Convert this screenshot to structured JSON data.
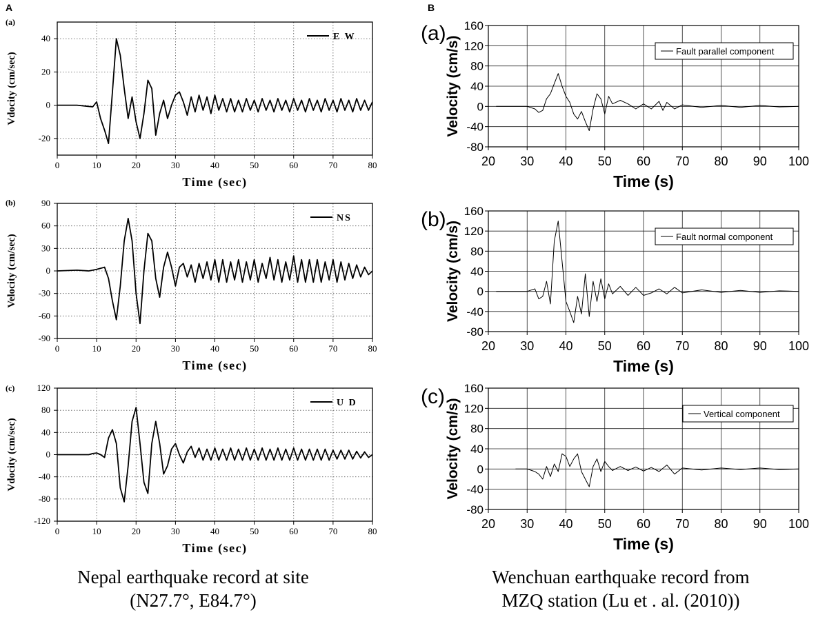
{
  "panel_labels": [
    "A",
    "B"
  ],
  "captions": {
    "left_line1": "Nepal earthquake record at site",
    "left_line2": "(N27.7°, E84.7°)",
    "right_line1": "Wenchuan earthquake record from",
    "right_line2": "MZQ station (Lu et . al. (2010))"
  },
  "chart_data": [
    {
      "id": "nepal-ew",
      "type": "line",
      "panel": "A",
      "sublabel": "(a)",
      "xlabel": "Time (sec)",
      "ylabel": "Vdocity (cm/sec)",
      "xlim": [
        0,
        80
      ],
      "ylim": [
        -30,
        50
      ],
      "xticks": [
        0,
        10,
        20,
        30,
        40,
        50,
        60,
        70,
        80
      ],
      "yticks": [
        -20,
        0,
        20,
        40
      ],
      "grid": "dotted",
      "legend_position": "top-right",
      "series": [
        {
          "name": "E W",
          "x": [
            0,
            5,
            9,
            10,
            11,
            12,
            13,
            14,
            15,
            16,
            17,
            18,
            19,
            20,
            21,
            22,
            23,
            24,
            25,
            26,
            27,
            28,
            29,
            30,
            31,
            32,
            33,
            34,
            35,
            36,
            37,
            38,
            39,
            40,
            41,
            42,
            43,
            44,
            45,
            46,
            47,
            48,
            49,
            50,
            51,
            52,
            53,
            54,
            55,
            56,
            57,
            58,
            59,
            60,
            61,
            62,
            63,
            64,
            65,
            66,
            67,
            68,
            69,
            70,
            71,
            72,
            73,
            74,
            75,
            76,
            77,
            78,
            79,
            80
          ],
          "y": [
            0,
            0,
            -1,
            2,
            -8,
            -15,
            -23,
            8,
            40,
            30,
            10,
            -8,
            5,
            -10,
            -20,
            -5,
            15,
            10,
            -18,
            -5,
            3,
            -8,
            0,
            6,
            8,
            2,
            -6,
            5,
            -4,
            6,
            -3,
            5,
            -5,
            6,
            -3,
            4,
            -4,
            4,
            -4,
            3,
            -4,
            4,
            -3,
            3,
            -4,
            4,
            -3,
            3,
            -4,
            4,
            -3,
            3,
            -4,
            4,
            -3,
            3,
            -4,
            4,
            -3,
            3,
            -4,
            4,
            -3,
            3,
            -4,
            4,
            -3,
            3,
            -4,
            4,
            -3,
            3,
            -3,
            2
          ]
        }
      ]
    },
    {
      "id": "nepal-ns",
      "type": "line",
      "panel": "A",
      "sublabel": "(b)",
      "xlabel": "Time (sec)",
      "ylabel": "Velocity (cm/sec)",
      "xlim": [
        0,
        80
      ],
      "ylim": [
        -90,
        90
      ],
      "xticks": [
        0,
        10,
        20,
        30,
        40,
        50,
        60,
        70,
        80
      ],
      "yticks": [
        -90,
        -60,
        -30,
        0,
        30,
        60,
        90
      ],
      "grid": "dotted",
      "legend_position": "top-right",
      "series": [
        {
          "name": "NS",
          "x": [
            0,
            5,
            8,
            10,
            12,
            13,
            14,
            15,
            16,
            17,
            18,
            19,
            20,
            21,
            22,
            23,
            24,
            25,
            26,
            27,
            28,
            29,
            30,
            31,
            32,
            33,
            34,
            35,
            36,
            37,
            38,
            39,
            40,
            41,
            42,
            43,
            44,
            45,
            46,
            47,
            48,
            49,
            50,
            51,
            52,
            53,
            54,
            55,
            56,
            57,
            58,
            59,
            60,
            61,
            62,
            63,
            64,
            65,
            66,
            67,
            68,
            69,
            70,
            71,
            72,
            73,
            74,
            75,
            76,
            77,
            78,
            79,
            80
          ],
          "y": [
            0,
            1,
            0,
            2,
            5,
            -10,
            -40,
            -65,
            -20,
            40,
            70,
            40,
            -30,
            -70,
            0,
            50,
            40,
            -10,
            -35,
            5,
            25,
            5,
            -20,
            5,
            10,
            -8,
            8,
            -15,
            10,
            -10,
            12,
            -12,
            15,
            -15,
            15,
            -15,
            12,
            -12,
            15,
            -15,
            12,
            -12,
            15,
            -15,
            10,
            -10,
            18,
            -12,
            15,
            -15,
            12,
            -12,
            20,
            -15,
            15,
            -15,
            15,
            -15,
            15,
            -15,
            12,
            -12,
            15,
            -15,
            12,
            -12,
            10,
            -10,
            8,
            -8,
            5,
            -5,
            0
          ]
        }
      ]
    },
    {
      "id": "nepal-ud",
      "type": "line",
      "panel": "A",
      "sublabel": "(c)",
      "xlabel": "Time (sec)",
      "ylabel": "Vdocity (cm/sec)",
      "xlim": [
        0,
        80
      ],
      "ylim": [
        -120,
        120
      ],
      "xticks": [
        0,
        10,
        20,
        30,
        40,
        50,
        60,
        70,
        80
      ],
      "yticks": [
        -120,
        -80,
        -40,
        0,
        40,
        80,
        120
      ],
      "grid": "dotted",
      "legend_position": "top-right",
      "series": [
        {
          "name": "U D",
          "x": [
            0,
            5,
            8,
            9,
            10,
            11,
            12,
            13,
            14,
            15,
            16,
            17,
            18,
            19,
            20,
            21,
            22,
            23,
            24,
            25,
            26,
            27,
            28,
            29,
            30,
            31,
            32,
            33,
            34,
            35,
            36,
            37,
            38,
            39,
            40,
            41,
            42,
            43,
            44,
            45,
            46,
            47,
            48,
            49,
            50,
            51,
            52,
            53,
            54,
            55,
            56,
            57,
            58,
            59,
            60,
            61,
            62,
            63,
            64,
            65,
            66,
            67,
            68,
            69,
            70,
            71,
            72,
            73,
            74,
            75,
            76,
            77,
            78,
            79,
            80
          ],
          "y": [
            0,
            0,
            0,
            2,
            3,
            0,
            -5,
            30,
            45,
            20,
            -60,
            -85,
            -20,
            60,
            85,
            20,
            -50,
            -70,
            20,
            60,
            20,
            -35,
            -20,
            10,
            20,
            0,
            -15,
            5,
            15,
            -5,
            12,
            -10,
            10,
            -10,
            12,
            -10,
            10,
            -10,
            12,
            -10,
            10,
            -10,
            12,
            -10,
            10,
            -10,
            12,
            -10,
            10,
            -10,
            12,
            -10,
            10,
            -10,
            12,
            -10,
            10,
            -10,
            10,
            -10,
            10,
            -10,
            10,
            -10,
            8,
            -8,
            8,
            -8,
            8,
            -8,
            6,
            -6,
            5,
            -5,
            0
          ]
        }
      ]
    },
    {
      "id": "wenchuan-parallel",
      "type": "line",
      "panel": "B",
      "sublabel": "(a)",
      "xlabel": "Time (s)",
      "ylabel": "Velocity (cm/s)",
      "xlim": [
        20,
        100
      ],
      "ylim": [
        -80,
        160
      ],
      "xticks": [
        20,
        30,
        40,
        50,
        60,
        70,
        80,
        90,
        100
      ],
      "yticks": [
        -80,
        -40,
        0,
        40,
        80,
        120,
        160
      ],
      "grid": "solid",
      "legend_position": "top-right",
      "series": [
        {
          "name": "Fault parallel component",
          "x": [
            22,
            30,
            32,
            33,
            34,
            35,
            36,
            37,
            38,
            39,
            40,
            41,
            42,
            43,
            44,
            45,
            46,
            47,
            48,
            49,
            50,
            51,
            52,
            54,
            56,
            58,
            60,
            62,
            64,
            65,
            66,
            68,
            70,
            75,
            80,
            85,
            90,
            95,
            100
          ],
          "y": [
            0,
            0,
            -5,
            -12,
            -8,
            15,
            25,
            45,
            65,
            40,
            20,
            8,
            -15,
            -25,
            -10,
            -30,
            -48,
            -5,
            25,
            15,
            -15,
            20,
            5,
            12,
            5,
            -5,
            5,
            -5,
            10,
            -8,
            8,
            -5,
            3,
            -2,
            2,
            -2,
            2,
            -1,
            0
          ]
        }
      ]
    },
    {
      "id": "wenchuan-normal",
      "type": "line",
      "panel": "B",
      "sublabel": "(b)",
      "xlabel": "Time (s)",
      "ylabel": "Velocity (cm/s)",
      "xlim": [
        20,
        100
      ],
      "ylim": [
        -80,
        160
      ],
      "xticks": [
        20,
        30,
        40,
        50,
        60,
        70,
        80,
        90,
        100
      ],
      "yticks": [
        -80,
        -40,
        0,
        40,
        80,
        120,
        160
      ],
      "grid": "solid",
      "legend_position": "top-right",
      "series": [
        {
          "name": "Fault normal component",
          "x": [
            22,
            30,
            32,
            33,
            34,
            35,
            36,
            37,
            38,
            39,
            40,
            41,
            42,
            43,
            44,
            45,
            46,
            47,
            48,
            49,
            50,
            51,
            52,
            54,
            56,
            58,
            60,
            62,
            64,
            66,
            68,
            70,
            75,
            80,
            85,
            90,
            95,
            100
          ],
          "y": [
            0,
            0,
            5,
            -15,
            -10,
            20,
            -25,
            100,
            140,
            60,
            -20,
            -40,
            -62,
            -10,
            -45,
            35,
            -50,
            20,
            -20,
            25,
            -15,
            15,
            -5,
            10,
            -8,
            8,
            -8,
            -3,
            5,
            -5,
            8,
            -3,
            3,
            -2,
            2,
            -2,
            1,
            0
          ]
        }
      ]
    },
    {
      "id": "wenchuan-vertical",
      "type": "line",
      "panel": "B",
      "sublabel": "(c)",
      "xlabel": "Time (s)",
      "ylabel": "Velocity (cm/s)",
      "xlim": [
        20,
        100
      ],
      "ylim": [
        -80,
        160
      ],
      "xticks": [
        20,
        30,
        40,
        50,
        60,
        70,
        80,
        90,
        100
      ],
      "yticks": [
        -80,
        -40,
        0,
        40,
        80,
        120,
        160
      ],
      "grid": "solid",
      "legend_position": "top-right",
      "series": [
        {
          "name": "Vertical component",
          "x": [
            27,
            30,
            32,
            33,
            34,
            35,
            36,
            37,
            38,
            39,
            40,
            41,
            42,
            43,
            44,
            45,
            46,
            47,
            48,
            49,
            50,
            51,
            52,
            54,
            56,
            58,
            60,
            62,
            64,
            66,
            68,
            70,
            75,
            80,
            85,
            90,
            95,
            100
          ],
          "y": [
            0,
            0,
            -5,
            -10,
            -20,
            5,
            -15,
            10,
            -5,
            30,
            25,
            5,
            20,
            30,
            -5,
            -20,
            -35,
            5,
            20,
            -5,
            15,
            5,
            -3,
            5,
            -3,
            4,
            -4,
            3,
            -5,
            8,
            -10,
            2,
            -2,
            2,
            -1,
            2,
            -1,
            0
          ]
        }
      ]
    }
  ]
}
